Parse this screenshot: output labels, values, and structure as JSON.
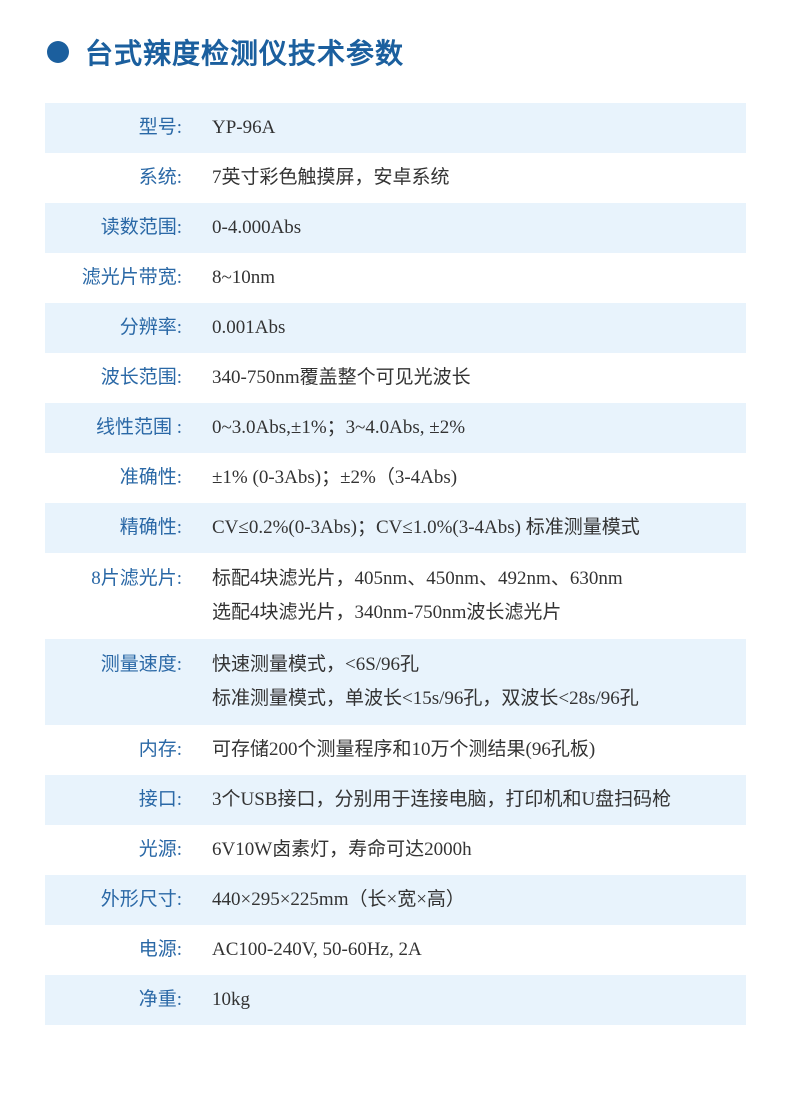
{
  "title": "台式辣度检测仪技术参数",
  "colors": {
    "accent": "#1b5f9e",
    "label": "#2a68a6",
    "stripe": "#e8f3fc",
    "text": "#333333"
  },
  "specs": [
    {
      "label": "型号:",
      "lines": [
        "YP-96A"
      ]
    },
    {
      "label": "系统:",
      "lines": [
        "7英寸彩色触摸屏，安卓系统"
      ]
    },
    {
      "label": "读数范围:",
      "lines": [
        "0-4.000Abs"
      ]
    },
    {
      "label": "滤光片带宽:",
      "lines": [
        "8~10nm"
      ]
    },
    {
      "label": "分辨率:",
      "lines": [
        "0.001Abs"
      ]
    },
    {
      "label": "波长范围:",
      "lines": [
        "340-750nm覆盖整个可见光波长"
      ]
    },
    {
      "label": "线性范围 :",
      "lines": [
        "0~3.0Abs,±1%；3~4.0Abs, ±2%"
      ]
    },
    {
      "label": "准确性:",
      "lines": [
        "±1% (0-3Abs)；±2%（3-4Abs)"
      ]
    },
    {
      "label": "精确性:",
      "lines": [
        "CV≤0.2%(0-3Abs)；CV≤1.0%(3-4Abs) 标准测量模式"
      ]
    },
    {
      "label": "8片滤光片:",
      "lines": [
        "标配4块滤光片，405nm、450nm、492nm、630nm",
        "选配4块滤光片，340nm-750nm波长滤光片"
      ]
    },
    {
      "label": "测量速度:",
      "lines": [
        "快速测量模式，<6S/96孔",
        "标准测量模式，单波长<15s/96孔，双波长<28s/96孔"
      ]
    },
    {
      "label": "内存:",
      "lines": [
        "可存储200个测量程序和10万个测结果(96孔板)"
      ]
    },
    {
      "label": "接口:",
      "lines": [
        "3个USB接口，分别用于连接电脑，打印机和U盘扫码枪"
      ]
    },
    {
      "label": "光源:",
      "lines": [
        "6V10W卤素灯，寿命可达2000h"
      ]
    },
    {
      "label": "外形尺寸:",
      "lines": [
        "440×295×225mm（长×宽×高）"
      ]
    },
    {
      "label": "电源:",
      "lines": [
        "AC100-240V, 50-60Hz, 2A"
      ]
    },
    {
      "label": "净重:",
      "lines": [
        "10kg"
      ]
    }
  ]
}
